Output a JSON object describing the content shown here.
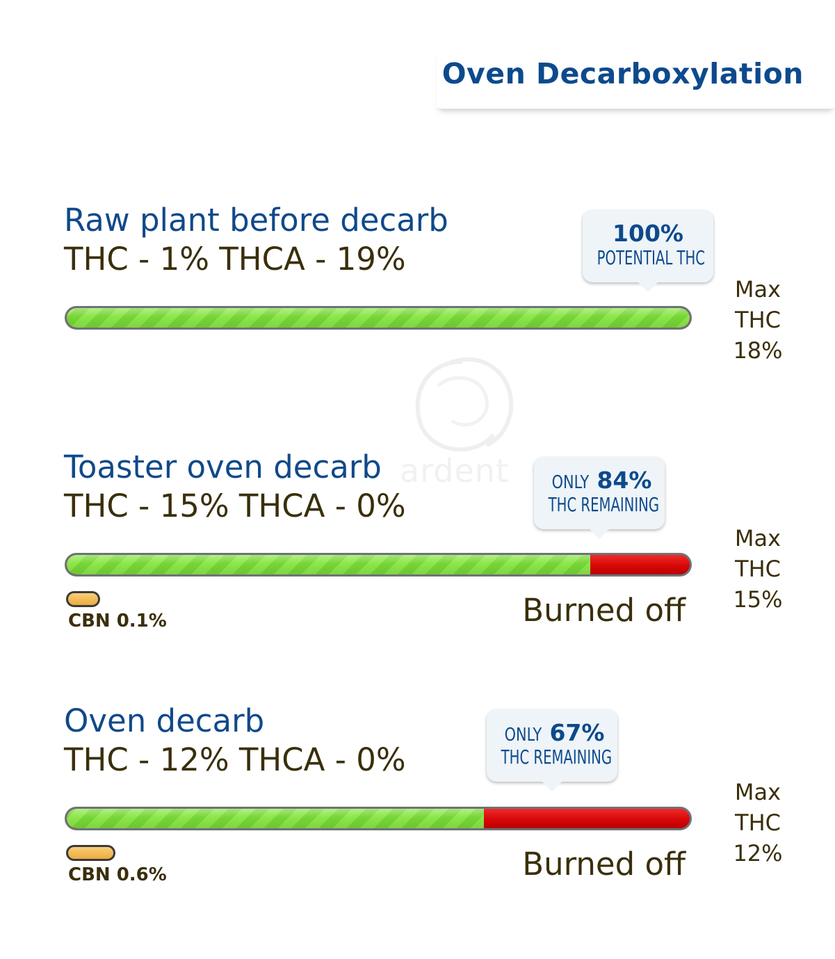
{
  "header": {
    "title": "Oven Decarboxylation"
  },
  "watermark": {
    "text": "ardent"
  },
  "colors": {
    "title_blue": "#10498a",
    "text_dark": "#3a2f0b",
    "bar_green": "#7fdc3c",
    "bar_red": "#d90d0d",
    "cbn_orange": "#eeaa3c"
  },
  "chart_data": {
    "type": "bar",
    "orientation": "horizontal",
    "categories": [
      "Raw plant before decarb",
      "Toaster oven decarb",
      "Oven decarb"
    ],
    "series": [
      {
        "name": "THC",
        "values": [
          1,
          15,
          12
        ]
      },
      {
        "name": "THCA",
        "values": [
          19,
          0,
          0
        ]
      },
      {
        "name": "Max THC",
        "values": [
          18,
          15,
          12
        ]
      },
      {
        "name": "CBN",
        "values": [
          null,
          0.1,
          0.6
        ]
      }
    ],
    "potential_thc_remaining_pct": [
      100,
      84,
      67
    ],
    "stages": [
      {
        "title": "Raw plant before decarb",
        "values_text": "THC - 1% THCA - 19%",
        "thc_pct": 1,
        "thca_pct": 19,
        "remaining_pct": 100,
        "callout_prefix": "",
        "callout_value": "100%",
        "callout_caption": "POTENTIAL THC",
        "max_label": "Max",
        "max_sub": "THC",
        "max_value": "18%",
        "cbn_label": "",
        "cbn_pct": null,
        "burned_label": ""
      },
      {
        "title": "Toaster oven decarb",
        "values_text": "THC - 15% THCA - 0%",
        "thc_pct": 15,
        "thca_pct": 0,
        "remaining_pct": 84,
        "callout_prefix": "ONLY",
        "callout_value": "84%",
        "callout_caption": "THC REMAINING",
        "max_label": "Max",
        "max_sub": "THC",
        "max_value": "15%",
        "cbn_label": "CBN 0.1%",
        "cbn_pct": 0.1,
        "burned_label": "Burned off"
      },
      {
        "title": "Oven decarb",
        "values_text": "THC - 12% THCA - 0%",
        "thc_pct": 12,
        "thca_pct": 0,
        "remaining_pct": 67,
        "callout_prefix": "ONLY",
        "callout_value": "67%",
        "callout_caption": "THC REMAINING",
        "max_label": "Max",
        "max_sub": "THC",
        "max_value": "12%",
        "cbn_label": "CBN 0.6%",
        "cbn_pct": 0.6,
        "burned_label": "Burned off"
      }
    ]
  }
}
